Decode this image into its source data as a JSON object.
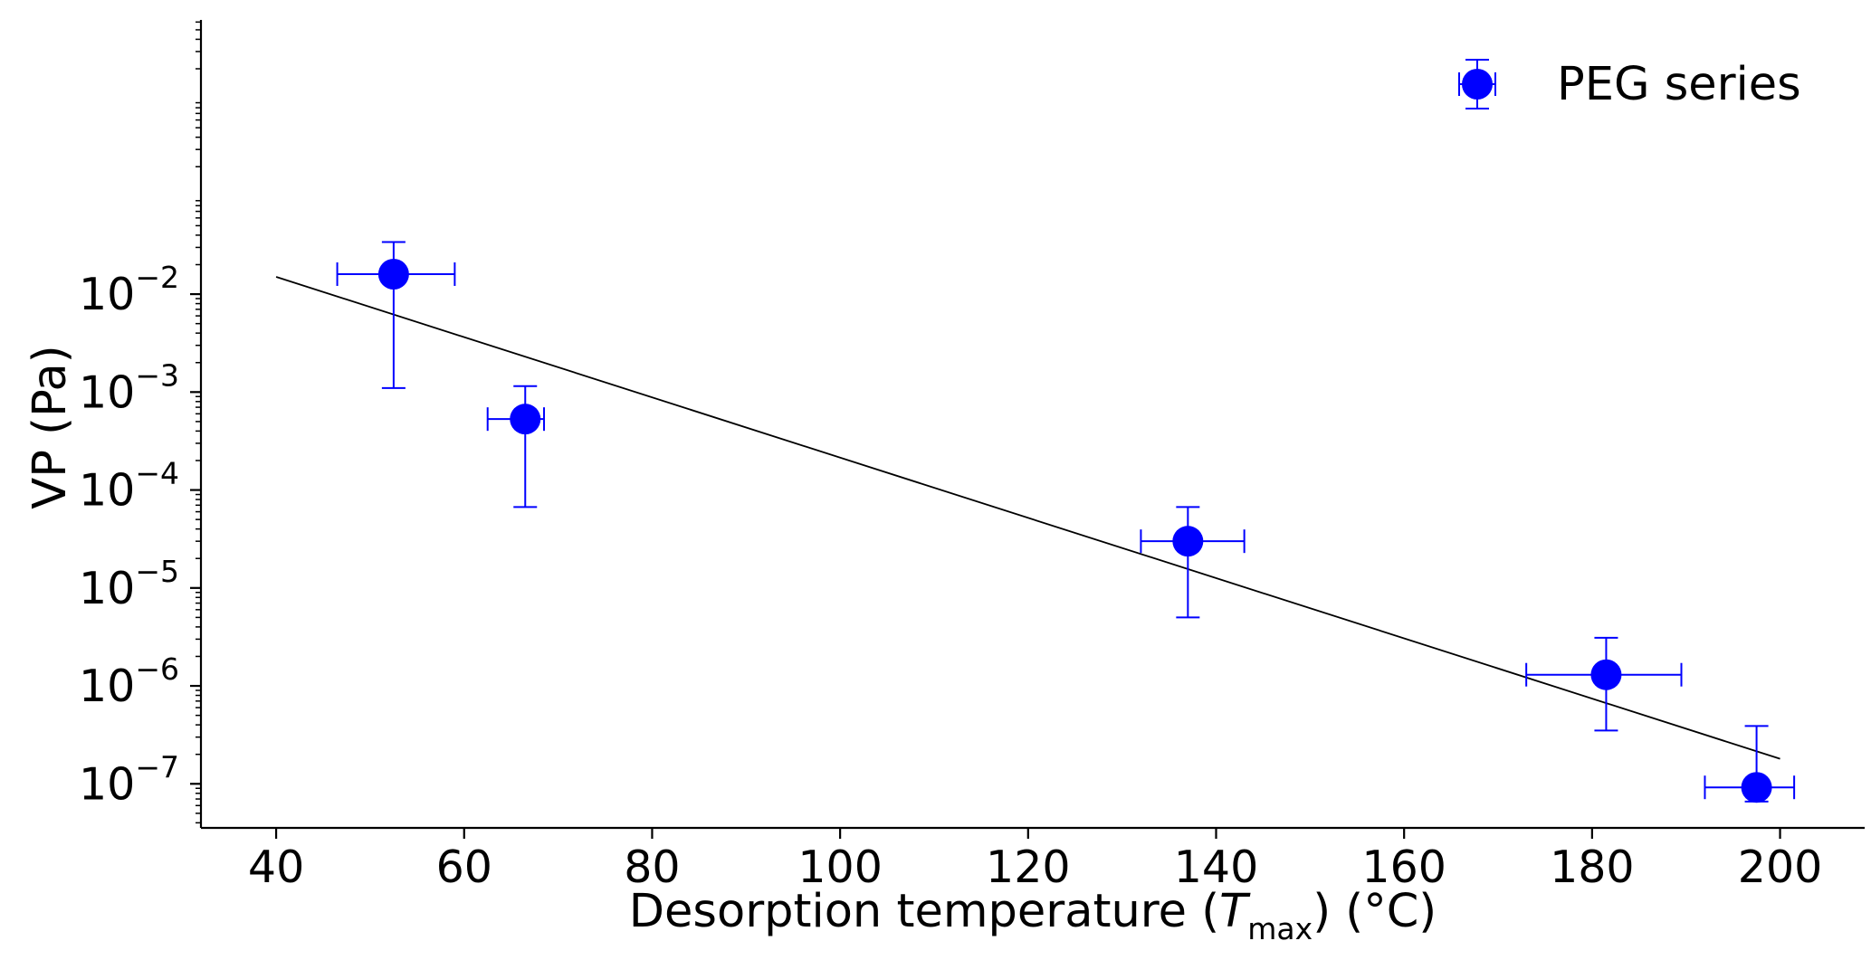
{
  "chart_data": {
    "type": "scatter",
    "xlabel": {
      "prefix": "Desorption temperature (",
      "symbol": "T",
      "subscript": "max",
      "suffix": ") (°C)"
    },
    "ylabel": "VP (Pa)",
    "xlim": [
      32,
      209
    ],
    "ylim_exponent": [
      -7.45,
      0.8
    ],
    "y_scale": "log",
    "x_ticks": [
      40,
      60,
      80,
      100,
      120,
      140,
      160,
      180,
      200
    ],
    "x_tick_labels": [
      "40",
      "60",
      "80",
      "100",
      "120",
      "140",
      "160",
      "180",
      "200"
    ],
    "y_ticks_exponent": [
      -2,
      -3,
      -4,
      -5,
      -6,
      -7
    ],
    "y_tick_base": "10",
    "y_tick_exponent_labels": [
      "−2",
      "−3",
      "−4",
      "−5",
      "−6",
      "−7"
    ],
    "series": [
      {
        "name": "PEG series",
        "color": "#0000ff",
        "points": [
          {
            "x": 52.5,
            "y": 0.016,
            "x_err": [
              46.5,
              59
            ],
            "y_err": [
              0.0011,
              0.034
            ]
          },
          {
            "x": 66.5,
            "y": 0.00053,
            "x_err": [
              62.5,
              68.5
            ],
            "y_err": [
              6.7e-05,
              0.00115
            ]
          },
          {
            "x": 137,
            "y": 3e-05,
            "x_err": [
              132,
              143
            ],
            "y_err": [
              5e-06,
              6.7e-05
            ]
          },
          {
            "x": 181.5,
            "y": 1.3e-06,
            "x_err": [
              173,
              189.5
            ],
            "y_err": [
              3.5e-07,
              3.1e-06
            ]
          },
          {
            "x": 197.5,
            "y": 9.2e-08,
            "x_err": [
              192,
              201.5
            ],
            "y_err": [
              6.6e-08,
              3.9e-07
            ]
          }
        ]
      }
    ],
    "fit_line": {
      "color": "#000000",
      "points": [
        {
          "x": 40,
          "y": 0.015
        },
        {
          "x": 200,
          "y": 1.8e-07
        }
      ]
    },
    "legend": {
      "position": "top-right",
      "label": "PEG series"
    },
    "grid": false
  }
}
